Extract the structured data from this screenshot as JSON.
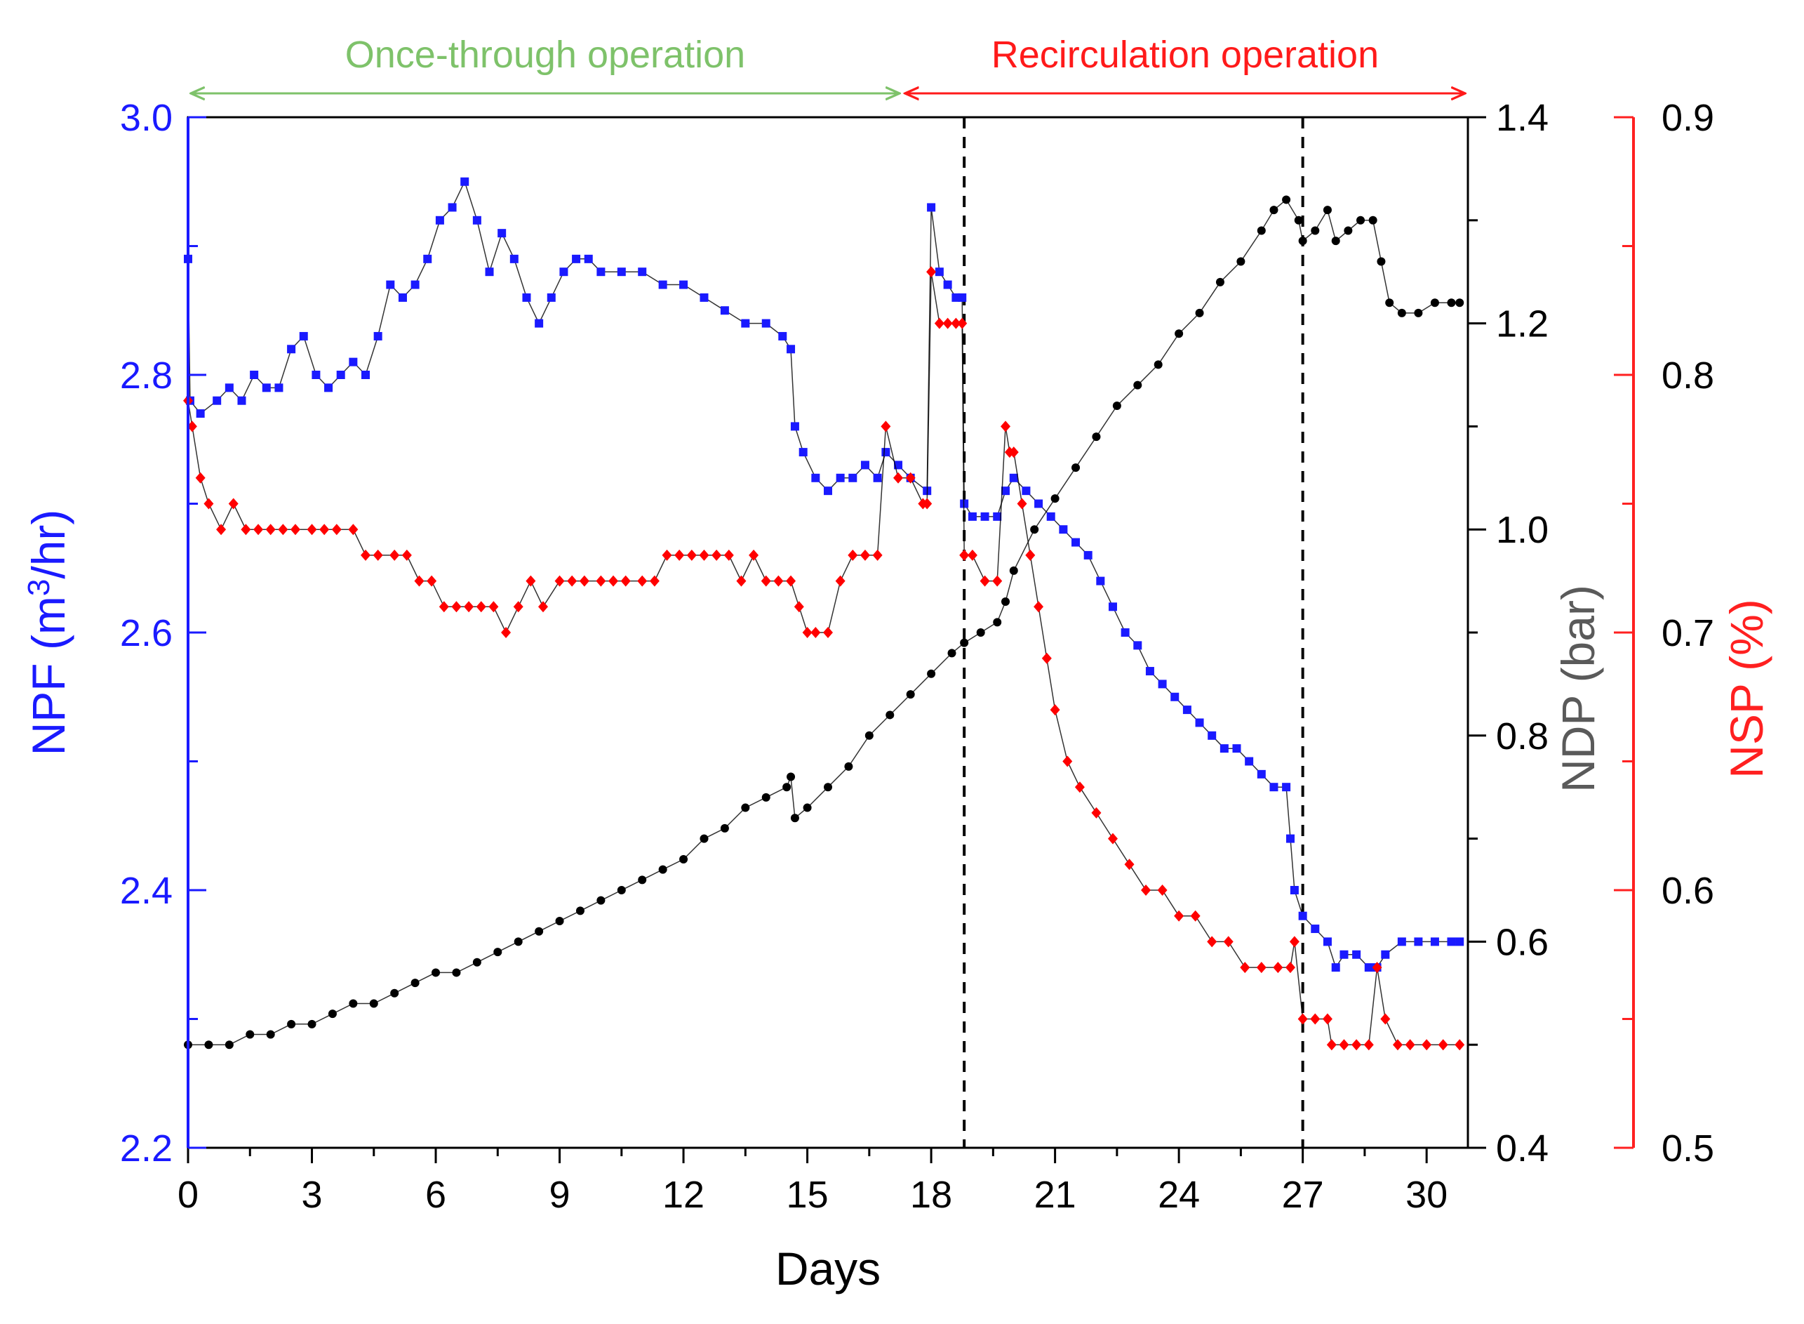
{
  "chart_data": {
    "type": "scatter",
    "title": "",
    "xlabel": "Days",
    "xlim": [
      0,
      31
    ],
    "xticks": [
      0,
      3,
      6,
      9,
      12,
      15,
      18,
      21,
      24,
      27,
      30
    ],
    "x_tick_labels": [
      "0",
      "3",
      "6",
      "9",
      "12",
      "15",
      "18",
      "21",
      "24",
      "27",
      "30"
    ],
    "axes": {
      "npf": {
        "label": "NPF (m³/hr)",
        "label_main": "NPF (m",
        "label_sup": "3",
        "label_end": "/hr)",
        "ylim": [
          2.2,
          3.0
        ],
        "ticks": [
          2.2,
          2.4,
          2.6,
          2.8,
          3.0
        ],
        "tick_labels": [
          "2.2",
          "2.4",
          "2.6",
          "2.8",
          "3.0"
        ],
        "color": "#1a1aff"
      },
      "ndp": {
        "label": "NDP (bar)",
        "ylim": [
          0.4,
          1.4
        ],
        "ticks": [
          0.4,
          0.6,
          0.8,
          1.0,
          1.2,
          1.4
        ],
        "tick_labels": [
          "0.4",
          "0.6",
          "0.8",
          "1.0",
          "1.2",
          "1.4"
        ],
        "color": "#5a5a5a"
      },
      "nsp": {
        "label": "NSP (%)",
        "ylim": [
          0.5,
          0.9
        ],
        "ticks": [
          0.5,
          0.6,
          0.7,
          0.8,
          0.9
        ],
        "tick_labels": [
          "0.5",
          "0.6",
          "0.7",
          "0.8",
          "0.9"
        ],
        "color": "#ff2020"
      }
    },
    "phases": [
      {
        "label": "Once-through operation",
        "x_start": 0,
        "x_end": 17.3,
        "color": "#7ec26a"
      },
      {
        "label": "Recirculation operation",
        "x_start": 17.3,
        "x_end": 31,
        "color": "#ff1a1a"
      }
    ],
    "vlines": [
      18.8,
      27.0
    ],
    "series": [
      {
        "name": "NPF",
        "axis": "npf",
        "color": "#1a1aff",
        "marker": "square",
        "points": [
          [
            0,
            2.89
          ],
          [
            0.05,
            2.78
          ],
          [
            0.3,
            2.77
          ],
          [
            0.7,
            2.78
          ],
          [
            1.0,
            2.79
          ],
          [
            1.3,
            2.78
          ],
          [
            1.6,
            2.8
          ],
          [
            1.9,
            2.79
          ],
          [
            2.2,
            2.79
          ],
          [
            2.5,
            2.82
          ],
          [
            2.8,
            2.83
          ],
          [
            3.1,
            2.8
          ],
          [
            3.4,
            2.79
          ],
          [
            3.7,
            2.8
          ],
          [
            4.0,
            2.81
          ],
          [
            4.3,
            2.8
          ],
          [
            4.6,
            2.83
          ],
          [
            4.9,
            2.87
          ],
          [
            5.2,
            2.86
          ],
          [
            5.5,
            2.87
          ],
          [
            5.8,
            2.89
          ],
          [
            6.1,
            2.92
          ],
          [
            6.4,
            2.93
          ],
          [
            6.7,
            2.95
          ],
          [
            7.0,
            2.92
          ],
          [
            7.3,
            2.88
          ],
          [
            7.6,
            2.91
          ],
          [
            7.9,
            2.89
          ],
          [
            8.2,
            2.86
          ],
          [
            8.5,
            2.84
          ],
          [
            8.8,
            2.86
          ],
          [
            9.1,
            2.88
          ],
          [
            9.4,
            2.89
          ],
          [
            9.7,
            2.89
          ],
          [
            10.0,
            2.88
          ],
          [
            10.5,
            2.88
          ],
          [
            11.0,
            2.88
          ],
          [
            11.5,
            2.87
          ],
          [
            12.0,
            2.87
          ],
          [
            12.5,
            2.86
          ],
          [
            13.0,
            2.85
          ],
          [
            13.5,
            2.84
          ],
          [
            14.0,
            2.84
          ],
          [
            14.4,
            2.83
          ],
          [
            14.6,
            2.82
          ],
          [
            14.7,
            2.76
          ],
          [
            14.9,
            2.74
          ],
          [
            15.2,
            2.72
          ],
          [
            15.5,
            2.71
          ],
          [
            15.8,
            2.72
          ],
          [
            16.1,
            2.72
          ],
          [
            16.4,
            2.73
          ],
          [
            16.7,
            2.72
          ],
          [
            16.9,
            2.74
          ],
          [
            17.2,
            2.73
          ],
          [
            17.5,
            2.72
          ],
          [
            17.9,
            2.71
          ],
          [
            18.0,
            2.93
          ],
          [
            18.2,
            2.88
          ],
          [
            18.4,
            2.87
          ],
          [
            18.6,
            2.86
          ],
          [
            18.75,
            2.86
          ],
          [
            18.8,
            2.7
          ],
          [
            19.0,
            2.69
          ],
          [
            19.3,
            2.69
          ],
          [
            19.6,
            2.69
          ],
          [
            19.8,
            2.71
          ],
          [
            20.0,
            2.72
          ],
          [
            20.3,
            2.71
          ],
          [
            20.6,
            2.7
          ],
          [
            20.9,
            2.69
          ],
          [
            21.2,
            2.68
          ],
          [
            21.5,
            2.67
          ],
          [
            21.8,
            2.66
          ],
          [
            22.1,
            2.64
          ],
          [
            22.4,
            2.62
          ],
          [
            22.7,
            2.6
          ],
          [
            23.0,
            2.59
          ],
          [
            23.3,
            2.57
          ],
          [
            23.6,
            2.56
          ],
          [
            23.9,
            2.55
          ],
          [
            24.2,
            2.54
          ],
          [
            24.5,
            2.53
          ],
          [
            24.8,
            2.52
          ],
          [
            25.1,
            2.51
          ],
          [
            25.4,
            2.51
          ],
          [
            25.7,
            2.5
          ],
          [
            26.0,
            2.49
          ],
          [
            26.3,
            2.48
          ],
          [
            26.6,
            2.48
          ],
          [
            26.7,
            2.44
          ],
          [
            26.8,
            2.4
          ],
          [
            27.0,
            2.38
          ],
          [
            27.3,
            2.37
          ],
          [
            27.6,
            2.36
          ],
          [
            27.8,
            2.34
          ],
          [
            28.0,
            2.35
          ],
          [
            28.3,
            2.35
          ],
          [
            28.6,
            2.34
          ],
          [
            28.8,
            2.34
          ],
          [
            29.0,
            2.35
          ],
          [
            29.4,
            2.36
          ],
          [
            29.8,
            2.36
          ],
          [
            30.2,
            2.36
          ],
          [
            30.6,
            2.36
          ],
          [
            30.8,
            2.36
          ]
        ]
      },
      {
        "name": "NDP",
        "axis": "ndp",
        "color": "#000000",
        "marker": "circle",
        "points": [
          [
            0,
            0.5
          ],
          [
            0.5,
            0.5
          ],
          [
            1.0,
            0.5
          ],
          [
            1.5,
            0.51
          ],
          [
            2.0,
            0.51
          ],
          [
            2.5,
            0.52
          ],
          [
            3.0,
            0.52
          ],
          [
            3.5,
            0.53
          ],
          [
            4.0,
            0.54
          ],
          [
            4.5,
            0.54
          ],
          [
            5.0,
            0.55
          ],
          [
            5.5,
            0.56
          ],
          [
            6.0,
            0.57
          ],
          [
            6.5,
            0.57
          ],
          [
            7.0,
            0.58
          ],
          [
            7.5,
            0.59
          ],
          [
            8.0,
            0.6
          ],
          [
            8.5,
            0.61
          ],
          [
            9.0,
            0.62
          ],
          [
            9.5,
            0.63
          ],
          [
            10.0,
            0.64
          ],
          [
            10.5,
            0.65
          ],
          [
            11.0,
            0.66
          ],
          [
            11.5,
            0.67
          ],
          [
            12.0,
            0.68
          ],
          [
            12.5,
            0.7
          ],
          [
            13.0,
            0.71
          ],
          [
            13.5,
            0.73
          ],
          [
            14.0,
            0.74
          ],
          [
            14.5,
            0.75
          ],
          [
            14.6,
            0.76
          ],
          [
            14.7,
            0.72
          ],
          [
            15.0,
            0.73
          ],
          [
            15.5,
            0.75
          ],
          [
            16.0,
            0.77
          ],
          [
            16.5,
            0.8
          ],
          [
            17.0,
            0.82
          ],
          [
            17.5,
            0.84
          ],
          [
            18.0,
            0.86
          ],
          [
            18.5,
            0.88
          ],
          [
            18.8,
            0.89
          ],
          [
            19.2,
            0.9
          ],
          [
            19.6,
            0.91
          ],
          [
            19.8,
            0.93
          ],
          [
            20.0,
            0.96
          ],
          [
            20.5,
            1.0
          ],
          [
            21.0,
            1.03
          ],
          [
            21.5,
            1.06
          ],
          [
            22.0,
            1.09
          ],
          [
            22.5,
            1.12
          ],
          [
            23.0,
            1.14
          ],
          [
            23.5,
            1.16
          ],
          [
            24.0,
            1.19
          ],
          [
            24.5,
            1.21
          ],
          [
            25.0,
            1.24
          ],
          [
            25.5,
            1.26
          ],
          [
            26.0,
            1.29
          ],
          [
            26.3,
            1.31
          ],
          [
            26.6,
            1.32
          ],
          [
            26.9,
            1.3
          ],
          [
            27.0,
            1.28
          ],
          [
            27.3,
            1.29
          ],
          [
            27.6,
            1.31
          ],
          [
            27.8,
            1.28
          ],
          [
            28.1,
            1.29
          ],
          [
            28.4,
            1.3
          ],
          [
            28.7,
            1.3
          ],
          [
            28.9,
            1.26
          ],
          [
            29.1,
            1.22
          ],
          [
            29.4,
            1.21
          ],
          [
            29.8,
            1.21
          ],
          [
            30.2,
            1.22
          ],
          [
            30.6,
            1.22
          ],
          [
            30.8,
            1.22
          ]
        ]
      },
      {
        "name": "NSP",
        "axis": "nsp",
        "color": "#ff0000",
        "marker": "diamond",
        "points": [
          [
            0,
            0.79
          ],
          [
            0.1,
            0.78
          ],
          [
            0.3,
            0.76
          ],
          [
            0.5,
            0.75
          ],
          [
            0.8,
            0.74
          ],
          [
            1.1,
            0.75
          ],
          [
            1.4,
            0.74
          ],
          [
            1.7,
            0.74
          ],
          [
            2.0,
            0.74
          ],
          [
            2.3,
            0.74
          ],
          [
            2.6,
            0.74
          ],
          [
            3.0,
            0.74
          ],
          [
            3.3,
            0.74
          ],
          [
            3.6,
            0.74
          ],
          [
            4.0,
            0.74
          ],
          [
            4.3,
            0.73
          ],
          [
            4.6,
            0.73
          ],
          [
            5.0,
            0.73
          ],
          [
            5.3,
            0.73
          ],
          [
            5.6,
            0.72
          ],
          [
            5.9,
            0.72
          ],
          [
            6.2,
            0.71
          ],
          [
            6.5,
            0.71
          ],
          [
            6.8,
            0.71
          ],
          [
            7.1,
            0.71
          ],
          [
            7.4,
            0.71
          ],
          [
            7.7,
            0.7
          ],
          [
            8.0,
            0.71
          ],
          [
            8.3,
            0.72
          ],
          [
            8.6,
            0.71
          ],
          [
            9.0,
            0.72
          ],
          [
            9.3,
            0.72
          ],
          [
            9.6,
            0.72
          ],
          [
            10.0,
            0.72
          ],
          [
            10.3,
            0.72
          ],
          [
            10.6,
            0.72
          ],
          [
            11.0,
            0.72
          ],
          [
            11.3,
            0.72
          ],
          [
            11.6,
            0.73
          ],
          [
            11.9,
            0.73
          ],
          [
            12.2,
            0.73
          ],
          [
            12.5,
            0.73
          ],
          [
            12.8,
            0.73
          ],
          [
            13.1,
            0.73
          ],
          [
            13.4,
            0.72
          ],
          [
            13.7,
            0.73
          ],
          [
            14.0,
            0.72
          ],
          [
            14.3,
            0.72
          ],
          [
            14.6,
            0.72
          ],
          [
            14.8,
            0.71
          ],
          [
            15.0,
            0.7
          ],
          [
            15.2,
            0.7
          ],
          [
            15.5,
            0.7
          ],
          [
            15.8,
            0.72
          ],
          [
            16.1,
            0.73
          ],
          [
            16.4,
            0.73
          ],
          [
            16.7,
            0.73
          ],
          [
            16.9,
            0.78
          ],
          [
            17.2,
            0.76
          ],
          [
            17.5,
            0.76
          ],
          [
            17.8,
            0.75
          ],
          [
            17.9,
            0.75
          ],
          [
            18.0,
            0.84
          ],
          [
            18.2,
            0.82
          ],
          [
            18.4,
            0.82
          ],
          [
            18.6,
            0.82
          ],
          [
            18.75,
            0.82
          ],
          [
            18.8,
            0.73
          ],
          [
            19.0,
            0.73
          ],
          [
            19.3,
            0.72
          ],
          [
            19.6,
            0.72
          ],
          [
            19.8,
            0.78
          ],
          [
            19.9,
            0.77
          ],
          [
            20.0,
            0.77
          ],
          [
            20.2,
            0.75
          ],
          [
            20.4,
            0.73
          ],
          [
            20.6,
            0.71
          ],
          [
            20.8,
            0.69
          ],
          [
            21.0,
            0.67
          ],
          [
            21.3,
            0.65
          ],
          [
            21.6,
            0.64
          ],
          [
            22.0,
            0.63
          ],
          [
            22.4,
            0.62
          ],
          [
            22.8,
            0.61
          ],
          [
            23.2,
            0.6
          ],
          [
            23.6,
            0.6
          ],
          [
            24.0,
            0.59
          ],
          [
            24.4,
            0.59
          ],
          [
            24.8,
            0.58
          ],
          [
            25.2,
            0.58
          ],
          [
            25.6,
            0.57
          ],
          [
            26.0,
            0.57
          ],
          [
            26.4,
            0.57
          ],
          [
            26.7,
            0.57
          ],
          [
            26.8,
            0.58
          ],
          [
            27.0,
            0.55
          ],
          [
            27.3,
            0.55
          ],
          [
            27.6,
            0.55
          ],
          [
            27.7,
            0.54
          ],
          [
            28.0,
            0.54
          ],
          [
            28.3,
            0.54
          ],
          [
            28.6,
            0.54
          ],
          [
            28.8,
            0.57
          ],
          [
            29.0,
            0.55
          ],
          [
            29.3,
            0.54
          ],
          [
            29.6,
            0.54
          ],
          [
            30.0,
            0.54
          ],
          [
            30.4,
            0.54
          ],
          [
            30.8,
            0.54
          ]
        ]
      }
    ]
  }
}
